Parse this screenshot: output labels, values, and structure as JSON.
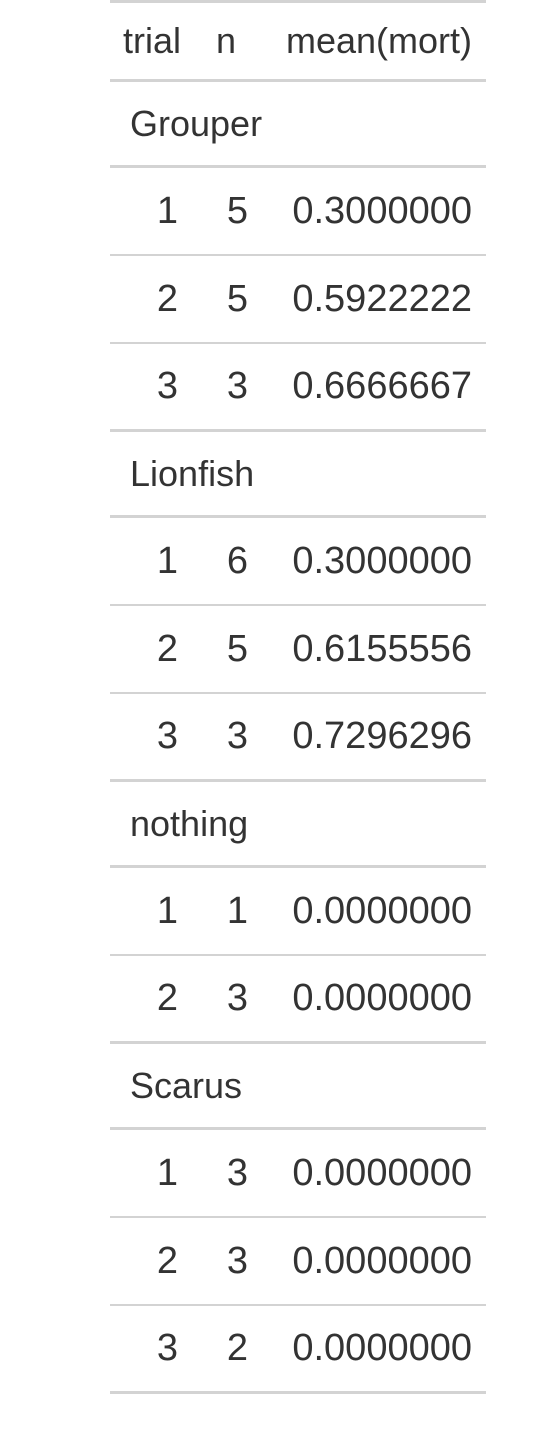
{
  "table": {
    "headers": {
      "trial": "trial",
      "n": "n",
      "mean": "mean(mort)"
    },
    "groups": [
      {
        "label": "Grouper",
        "rows": [
          {
            "trial": "1",
            "n": "5",
            "mean": "0.3000000"
          },
          {
            "trial": "2",
            "n": "5",
            "mean": "0.5922222"
          },
          {
            "trial": "3",
            "n": "3",
            "mean": "0.6666667"
          }
        ]
      },
      {
        "label": "Lionfish",
        "rows": [
          {
            "trial": "1",
            "n": "6",
            "mean": "0.3000000"
          },
          {
            "trial": "2",
            "n": "5",
            "mean": "0.6155556"
          },
          {
            "trial": "3",
            "n": "3",
            "mean": "0.7296296"
          }
        ]
      },
      {
        "label": "nothing",
        "rows": [
          {
            "trial": "1",
            "n": "1",
            "mean": "0.0000000"
          },
          {
            "trial": "2",
            "n": "3",
            "mean": "0.0000000"
          }
        ]
      },
      {
        "label": "Scarus",
        "rows": [
          {
            "trial": "1",
            "n": "3",
            "mean": "0.0000000"
          },
          {
            "trial": "2",
            "n": "3",
            "mean": "0.0000000"
          },
          {
            "trial": "3",
            "n": "2",
            "mean": "0.0000000"
          }
        ]
      }
    ],
    "colors": {
      "text": "#333333",
      "rule": "#d3d3d3",
      "background": "#ffffff"
    }
  }
}
